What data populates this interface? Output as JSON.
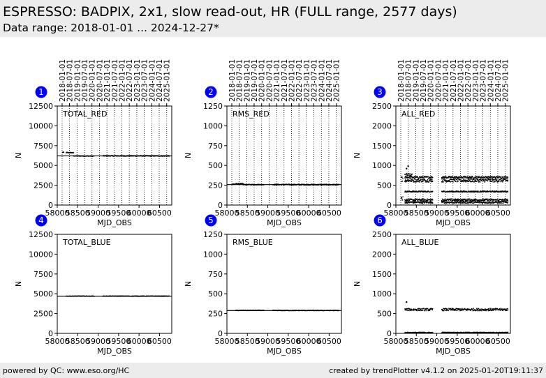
{
  "header": {
    "title": "ESPRESSO: BADPIX, 2x1, slow read-out, HR (FULL range, 2577 days)",
    "subtitle": "Data range: 2018-01-01 ... 2024-12-27*"
  },
  "footer": {
    "left": "powered by QC: www.eso.org/HC",
    "right": "created by trendPlotter v4.1.2 on 2025-01-20T19:11:37"
  },
  "colors": {
    "badge": "#0000ff",
    "points": "#000000",
    "reference_line": "#000000",
    "header_bg": "#ececec"
  },
  "chart_data": [
    {
      "panel": "1",
      "type": "scatter",
      "label": "TOTAL_RED",
      "xlabel": "MJD_OBS",
      "ylabel": "N",
      "xlim": [
        58000,
        60800
      ],
      "ylim": [
        0,
        12500
      ],
      "xticks": [
        58000,
        58500,
        59000,
        59500,
        60000,
        60500
      ],
      "xtick_labels": [
        "58000",
        "58500",
        "59000",
        "59500",
        "60000",
        "60500"
      ],
      "yticks": [
        0,
        2500,
        5000,
        7500,
        10000,
        12500
      ],
      "ytick_labels": [
        "0",
        "2500",
        "5000",
        "7500",
        "10000",
        "12500"
      ],
      "reference_line": 6200,
      "date_ticks": [
        58119,
        58300,
        58484,
        58665,
        58849,
        59031,
        59215,
        59396,
        59580,
        59761,
        59945,
        60126,
        60310,
        60492,
        60676
      ],
      "date_labels": [
        "2018-01-01",
        "2018-07-01",
        "2019-01-01",
        "2019-07-01",
        "2020-01-01",
        "2020-07-01",
        "2021-01-01",
        "2021-07-01",
        "2022-01-01",
        "2022-07-01",
        "2023-01-01",
        "2023-07-01",
        "2024-01-01",
        "2024-07-01",
        "2025-01-01"
      ],
      "segments": [
        {
          "x": [
            58130,
            58160
          ],
          "y": [
            6650,
            6650
          ],
          "spread": 40
        },
        {
          "x": [
            58220,
            58400
          ],
          "y": [
            6620,
            6600
          ],
          "spread": 50
        },
        {
          "x": [
            58400,
            58900
          ],
          "y": [
            6200,
            6180
          ],
          "spread": 40
        },
        {
          "x": [
            59120,
            60740
          ],
          "y": [
            6210,
            6200
          ],
          "spread": 50
        }
      ]
    },
    {
      "panel": "2",
      "type": "scatter",
      "label": "RMS_RED",
      "xlabel": "MJD_OBS",
      "ylabel": "N",
      "xlim": [
        58000,
        60800
      ],
      "ylim": [
        0,
        1250
      ],
      "xticks": [
        58000,
        58500,
        59000,
        59500,
        60000,
        60500
      ],
      "xtick_labels": [
        "58000",
        "58500",
        "59000",
        "59500",
        "60000",
        "60500"
      ],
      "yticks": [
        0,
        250,
        500,
        750,
        1000,
        1250
      ],
      "ytick_labels": [
        "0",
        "250",
        "500",
        "750",
        "1000",
        "1250"
      ],
      "reference_line": 258,
      "date_ticks": [
        58119,
        58300,
        58484,
        58665,
        58849,
        59031,
        59215,
        59396,
        59580,
        59761,
        59945,
        60126,
        60310,
        60492,
        60676
      ],
      "date_labels": [
        "2018-01-01",
        "2018-07-01",
        "2019-01-01",
        "2019-07-01",
        "2020-01-01",
        "2020-07-01",
        "2021-01-01",
        "2021-07-01",
        "2022-01-01",
        "2022-07-01",
        "2023-01-01",
        "2023-07-01",
        "2024-01-01",
        "2024-07-01",
        "2025-01-01"
      ],
      "segments": [
        {
          "x": [
            58130,
            58200
          ],
          "y": [
            262,
            262
          ],
          "spread": 4
        },
        {
          "x": [
            58220,
            58400
          ],
          "y": [
            270,
            266
          ],
          "spread": 6
        },
        {
          "x": [
            58400,
            58900
          ],
          "y": [
            258,
            258
          ],
          "spread": 4
        },
        {
          "x": [
            59120,
            60740
          ],
          "y": [
            258,
            257
          ],
          "spread": 6
        }
      ]
    },
    {
      "panel": "3",
      "type": "scatter",
      "label": "ALL_RED",
      "xlabel": "MJD_OBS",
      "ylabel": "N",
      "xlim": [
        58000,
        60800
      ],
      "ylim": [
        0,
        2500
      ],
      "xticks": [
        58000,
        58500,
        59000,
        59500,
        60000,
        60500
      ],
      "xtick_labels": [
        "58000",
        "58500",
        "59000",
        "59500",
        "60000",
        "60500"
      ],
      "yticks": [
        0,
        500,
        1000,
        1500,
        2000,
        2500
      ],
      "ytick_labels": [
        "0",
        "500",
        "1000",
        "1500",
        "2000",
        "2500"
      ],
      "reference_line": null,
      "date_ticks": [
        58119,
        58300,
        58484,
        58665,
        58849,
        59031,
        59215,
        59396,
        59580,
        59761,
        59945,
        60126,
        60310,
        60492,
        60676
      ],
      "date_labels": [
        "2018-01-01",
        "2018-07-01",
        "2019-01-01",
        "2019-07-01",
        "2020-01-01",
        "2020-07-01",
        "2021-01-01",
        "2021-07-01",
        "2022-01-01",
        "2022-07-01",
        "2023-01-01",
        "2023-07-01",
        "2024-01-01",
        "2024-07-01",
        "2025-01-01"
      ],
      "segments": [
        {
          "x": [
            58130,
            58170
          ],
          "y": [
            650,
            650
          ],
          "spread": 60
        },
        {
          "x": [
            58130,
            58170
          ],
          "y": [
            150,
            150
          ],
          "spread": 60
        },
        {
          "x": [
            58220,
            58400
          ],
          "y": [
            760,
            740
          ],
          "spread": 50
        },
        {
          "x": [
            58220,
            58900
          ],
          "y": [
            700,
            700
          ],
          "spread": 25
        },
        {
          "x": [
            58220,
            58900
          ],
          "y": [
            620,
            620
          ],
          "spread": 40
        },
        {
          "x": [
            58220,
            58900
          ],
          "y": [
            340,
            340
          ],
          "spread": 15
        },
        {
          "x": [
            58220,
            58900
          ],
          "y": [
            130,
            130
          ],
          "spread": 25
        },
        {
          "x": [
            58220,
            58900
          ],
          "y": [
            70,
            70
          ],
          "spread": 25
        },
        {
          "x": [
            59120,
            60740
          ],
          "y": [
            700,
            700
          ],
          "spread": 25
        },
        {
          "x": [
            59120,
            60740
          ],
          "y": [
            620,
            620
          ],
          "spread": 40
        },
        {
          "x": [
            59120,
            60740
          ],
          "y": [
            340,
            340
          ],
          "spread": 15
        },
        {
          "x": [
            59120,
            60740
          ],
          "y": [
            130,
            130
          ],
          "spread": 25
        },
        {
          "x": [
            59120,
            60740
          ],
          "y": [
            70,
            70
          ],
          "spread": 25
        }
      ],
      "points": [
        {
          "x": 58260,
          "y": 920
        },
        {
          "x": 58300,
          "y": 980
        }
      ]
    },
    {
      "panel": "4",
      "type": "scatter",
      "label": "TOTAL_BLUE",
      "xlabel": "MJD_OBS",
      "ylabel": "N",
      "xlim": [
        58000,
        60800
      ],
      "ylim": [
        0,
        12500
      ],
      "xticks": [
        58000,
        58500,
        59000,
        59500,
        60000,
        60500
      ],
      "xtick_labels": [
        "58000",
        "58500",
        "59000",
        "59500",
        "60000",
        "60500"
      ],
      "yticks": [
        0,
        2500,
        5000,
        7500,
        10000,
        12500
      ],
      "ytick_labels": [
        "0",
        "2500",
        "5000",
        "7500",
        "10000",
        "12500"
      ],
      "reference_line": 4700,
      "segments": [
        {
          "x": [
            58220,
            58900
          ],
          "y": [
            4700,
            4700
          ],
          "spread": 30
        },
        {
          "x": [
            59120,
            60740
          ],
          "y": [
            4700,
            4700
          ],
          "spread": 30
        }
      ]
    },
    {
      "panel": "5",
      "type": "scatter",
      "label": "RMS_BLUE",
      "xlabel": "MJD_OBS",
      "ylabel": "N",
      "xlim": [
        58000,
        60800
      ],
      "ylim": [
        0,
        1250
      ],
      "xticks": [
        58000,
        58500,
        59000,
        59500,
        60000,
        60500
      ],
      "xtick_labels": [
        "58000",
        "58500",
        "59000",
        "59500",
        "60000",
        "60500"
      ],
      "yticks": [
        0,
        250,
        500,
        750,
        1000,
        1250
      ],
      "ytick_labels": [
        "0",
        "250",
        "500",
        "750",
        "1000",
        "1250"
      ],
      "reference_line": 288,
      "segments": [
        {
          "x": [
            58220,
            58900
          ],
          "y": [
            290,
            290
          ],
          "spread": 4
        },
        {
          "x": [
            59120,
            60740
          ],
          "y": [
            289,
            289
          ],
          "spread": 4
        }
      ]
    },
    {
      "panel": "6",
      "type": "scatter",
      "label": "ALL_BLUE",
      "xlabel": "MJD_OBS",
      "ylabel": "N",
      "xlim": [
        58000,
        60800
      ],
      "ylim": [
        0,
        2500
      ],
      "xticks": [
        58000,
        58500,
        59000,
        59500,
        60000,
        60500
      ],
      "xtick_labels": [
        "58000",
        "58500",
        "59000",
        "59500",
        "60000",
        "60500"
      ],
      "yticks": [
        0,
        500,
        1000,
        1500,
        2000,
        2500
      ],
      "ytick_labels": [
        "0",
        "500",
        "1000",
        "1500",
        "2000",
        "2500"
      ],
      "reference_line": null,
      "segments": [
        {
          "x": [
            58220,
            58900
          ],
          "y": [
            600,
            600
          ],
          "spread": 30
        },
        {
          "x": [
            59120,
            60740
          ],
          "y": [
            600,
            600
          ],
          "spread": 30
        },
        {
          "x": [
            58220,
            58900
          ],
          "y": [
            20,
            20
          ],
          "spread": 10
        },
        {
          "x": [
            59120,
            60740
          ],
          "y": [
            20,
            20
          ],
          "spread": 10
        }
      ],
      "points": [
        {
          "x": 58260,
          "y": 790
        }
      ]
    }
  ]
}
